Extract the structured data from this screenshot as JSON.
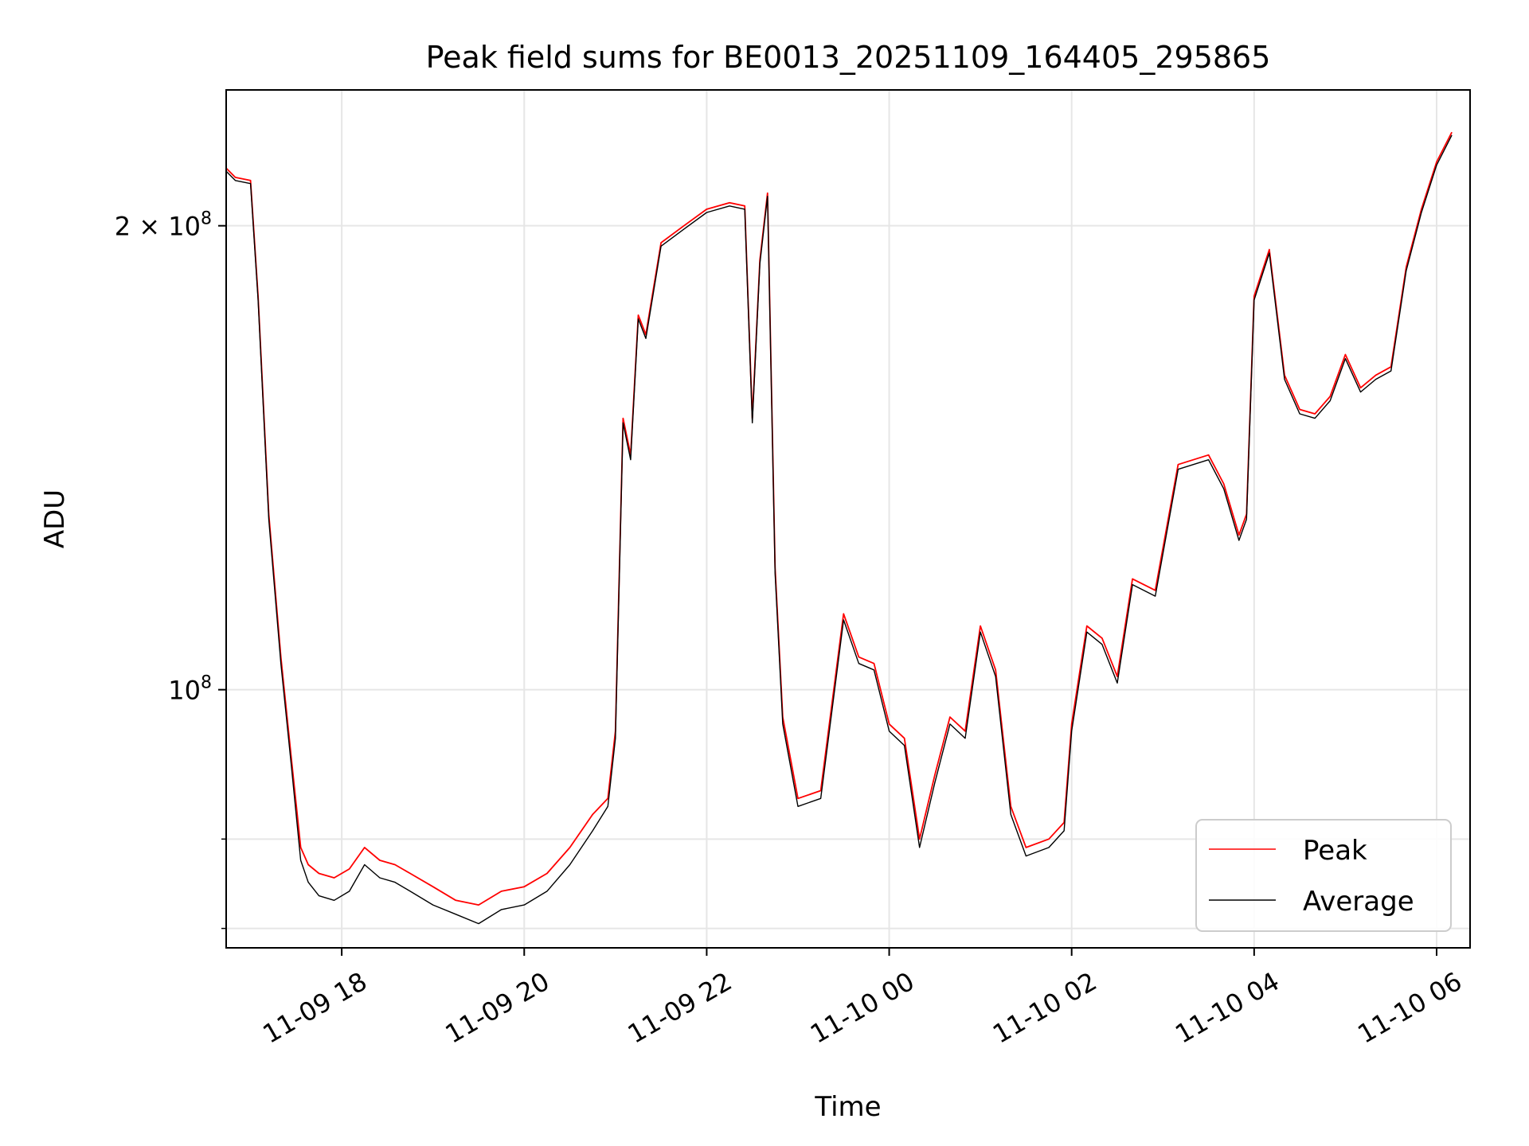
{
  "chart_data": {
    "type": "line",
    "title": "Peak field sums for BE0013_20251109_164405_295865",
    "xlabel": "Time",
    "ylabel": "ADU",
    "yscale": "log",
    "grid": true,
    "legend_position": "lower-right",
    "xlim": [
      "2025-11-09 16:44",
      "2025-11-10 06:22"
    ],
    "ylim": [
      68000000,
      245000000
    ],
    "x_ticks": [
      {
        "value": "2025-11-09 18:00",
        "label": "11-09 18"
      },
      {
        "value": "2025-11-09 20:00",
        "label": "11-09 20"
      },
      {
        "value": "2025-11-09 22:00",
        "label": "11-09 22"
      },
      {
        "value": "2025-11-10 00:00",
        "label": "11-10 00"
      },
      {
        "value": "2025-11-10 02:00",
        "label": "11-10 02"
      },
      {
        "value": "2025-11-10 04:00",
        "label": "11-10 04"
      },
      {
        "value": "2025-11-10 06:00",
        "label": "11-10 06"
      }
    ],
    "y_major_ticks": [
      {
        "value": 100000000,
        "label_base": "10",
        "label_exp": "8"
      },
      {
        "value": 200000000,
        "label_base": "2 × 10",
        "label_exp": "8"
      }
    ],
    "y_minor_ticks": [
      70000000,
      80000000
    ],
    "series": [
      {
        "name": "Peak",
        "color": "#ff0000",
        "x": [
          "2025-11-09 16:44",
          "2025-11-09 16:50",
          "2025-11-09 17:00",
          "2025-11-09 17:05",
          "2025-11-09 17:12",
          "2025-11-09 17:20",
          "2025-11-09 17:27",
          "2025-11-09 17:33",
          "2025-11-09 17:38",
          "2025-11-09 17:45",
          "2025-11-09 17:55",
          "2025-11-09 18:05",
          "2025-11-09 18:15",
          "2025-11-09 18:25",
          "2025-11-09 18:35",
          "2025-11-09 18:45",
          "2025-11-09 19:00",
          "2025-11-09 19:15",
          "2025-11-09 19:30",
          "2025-11-09 19:45",
          "2025-11-09 20:00",
          "2025-11-09 20:15",
          "2025-11-09 20:30",
          "2025-11-09 20:45",
          "2025-11-09 20:55",
          "2025-11-09 21:00",
          "2025-11-09 21:05",
          "2025-11-09 21:10",
          "2025-11-09 21:15",
          "2025-11-09 21:20",
          "2025-11-09 21:30",
          "2025-11-09 21:45",
          "2025-11-09 22:00",
          "2025-11-09 22:15",
          "2025-11-09 22:25",
          "2025-11-09 22:30",
          "2025-11-09 22:35",
          "2025-11-09 22:40",
          "2025-11-09 22:45",
          "2025-11-09 22:50",
          "2025-11-09 23:00",
          "2025-11-09 23:15",
          "2025-11-09 23:30",
          "2025-11-09 23:40",
          "2025-11-09 23:50",
          "2025-11-10 00:00",
          "2025-11-10 00:10",
          "2025-11-10 00:20",
          "2025-11-10 00:30",
          "2025-11-10 00:40",
          "2025-11-10 00:50",
          "2025-11-10 01:00",
          "2025-11-10 01:10",
          "2025-11-10 01:20",
          "2025-11-10 01:30",
          "2025-11-10 01:45",
          "2025-11-10 01:55",
          "2025-11-10 02:00",
          "2025-11-10 02:10",
          "2025-11-10 02:20",
          "2025-11-10 02:30",
          "2025-11-10 02:40",
          "2025-11-10 02:55",
          "2025-11-10 03:10",
          "2025-11-10 03:20",
          "2025-11-10 03:30",
          "2025-11-10 03:40",
          "2025-11-10 03:50",
          "2025-11-10 03:55",
          "2025-11-10 04:00",
          "2025-11-10 04:10",
          "2025-11-10 04:20",
          "2025-11-10 04:30",
          "2025-11-10 04:40",
          "2025-11-10 04:50",
          "2025-11-10 05:00",
          "2025-11-10 05:10",
          "2025-11-10 05:20",
          "2025-11-10 05:30",
          "2025-11-10 05:40",
          "2025-11-10 05:50",
          "2025-11-10 06:00",
          "2025-11-10 06:10"
        ],
        "y": [
          218000000,
          215000000,
          214000000,
          180000000,
          130000000,
          105000000,
          90000000,
          79000000,
          77000000,
          76000000,
          75500000,
          76500000,
          79000000,
          77500000,
          77000000,
          76000000,
          74500000,
          73000000,
          72500000,
          74000000,
          74500000,
          76000000,
          79000000,
          83000000,
          85000000,
          94000000,
          150000000,
          142000000,
          175000000,
          170000000,
          195000000,
          200000000,
          205000000,
          207000000,
          206000000,
          150000000,
          190000000,
          210000000,
          120000000,
          96000000,
          85000000,
          86000000,
          112000000,
          105000000,
          104000000,
          95000000,
          93000000,
          80000000,
          88000000,
          96000000,
          94000000,
          110000000,
          103000000,
          84000000,
          79000000,
          80000000,
          82000000,
          95000000,
          110000000,
          108000000,
          102000000,
          118000000,
          116000000,
          140000000,
          141000000,
          142000000,
          136000000,
          126000000,
          130000000,
          180000000,
          193000000,
          160000000,
          152000000,
          151000000,
          155000000,
          165000000,
          157000000,
          160000000,
          162000000,
          188000000,
          205000000,
          220000000,
          230000000
        ]
      },
      {
        "name": "Average",
        "color": "#000000",
        "x": [
          "2025-11-09 16:44",
          "2025-11-09 16:50",
          "2025-11-09 17:00",
          "2025-11-09 17:05",
          "2025-11-09 17:12",
          "2025-11-09 17:20",
          "2025-11-09 17:27",
          "2025-11-09 17:33",
          "2025-11-09 17:38",
          "2025-11-09 17:45",
          "2025-11-09 17:55",
          "2025-11-09 18:05",
          "2025-11-09 18:15",
          "2025-11-09 18:25",
          "2025-11-09 18:35",
          "2025-11-09 18:45",
          "2025-11-09 19:00",
          "2025-11-09 19:15",
          "2025-11-09 19:30",
          "2025-11-09 19:45",
          "2025-11-09 20:00",
          "2025-11-09 20:15",
          "2025-11-09 20:30",
          "2025-11-09 20:45",
          "2025-11-09 20:55",
          "2025-11-09 21:00",
          "2025-11-09 21:05",
          "2025-11-09 21:10",
          "2025-11-09 21:15",
          "2025-11-09 21:20",
          "2025-11-09 21:30",
          "2025-11-09 21:45",
          "2025-11-09 22:00",
          "2025-11-09 22:15",
          "2025-11-09 22:25",
          "2025-11-09 22:30",
          "2025-11-09 22:35",
          "2025-11-09 22:40",
          "2025-11-09 22:45",
          "2025-11-09 22:50",
          "2025-11-09 23:00",
          "2025-11-09 23:15",
          "2025-11-09 23:30",
          "2025-11-09 23:40",
          "2025-11-09 23:50",
          "2025-11-10 00:00",
          "2025-11-10 00:10",
          "2025-11-10 00:20",
          "2025-11-10 00:30",
          "2025-11-10 00:40",
          "2025-11-10 00:50",
          "2025-11-10 01:00",
          "2025-11-10 01:10",
          "2025-11-10 01:20",
          "2025-11-10 01:30",
          "2025-11-10 01:45",
          "2025-11-10 01:55",
          "2025-11-10 02:00",
          "2025-11-10 02:10",
          "2025-11-10 02:20",
          "2025-11-10 02:30",
          "2025-11-10 02:40",
          "2025-11-10 02:55",
          "2025-11-10 03:10",
          "2025-11-10 03:20",
          "2025-11-10 03:30",
          "2025-11-10 03:40",
          "2025-11-10 03:50",
          "2025-11-10 03:55",
          "2025-11-10 04:00",
          "2025-11-10 04:10",
          "2025-11-10 04:20",
          "2025-11-10 04:30",
          "2025-11-10 04:40",
          "2025-11-10 04:50",
          "2025-11-10 05:00",
          "2025-11-10 05:10",
          "2025-11-10 05:20",
          "2025-11-10 05:30",
          "2025-11-10 05:40",
          "2025-11-10 05:50",
          "2025-11-10 06:00",
          "2025-11-10 06:10"
        ],
        "y": [
          217000000,
          214000000,
          213000000,
          179000000,
          129000000,
          104000000,
          89000000,
          77500000,
          75000000,
          73500000,
          73000000,
          74000000,
          77000000,
          75500000,
          75000000,
          74000000,
          72500000,
          71500000,
          70500000,
          72000000,
          72500000,
          74000000,
          77000000,
          81000000,
          84000000,
          93000000,
          149000000,
          141000000,
          174000000,
          169000000,
          194000000,
          199000000,
          204000000,
          206000000,
          205000000,
          149000000,
          189000000,
          209000000,
          119000000,
          95000000,
          84000000,
          85000000,
          111000000,
          104000000,
          103000000,
          94000000,
          92000000,
          79000000,
          87000000,
          95000000,
          93000000,
          109000000,
          102000000,
          83000000,
          78000000,
          79000000,
          81000000,
          94000000,
          109000000,
          107000000,
          101000000,
          117000000,
          115000000,
          139000000,
          140000000,
          141000000,
          135000000,
          125000000,
          129000000,
          179000000,
          192000000,
          159000000,
          151000000,
          150000000,
          154000000,
          164000000,
          156000000,
          159000000,
          161000000,
          187000000,
          204000000,
          219000000,
          229000000
        ]
      }
    ]
  }
}
